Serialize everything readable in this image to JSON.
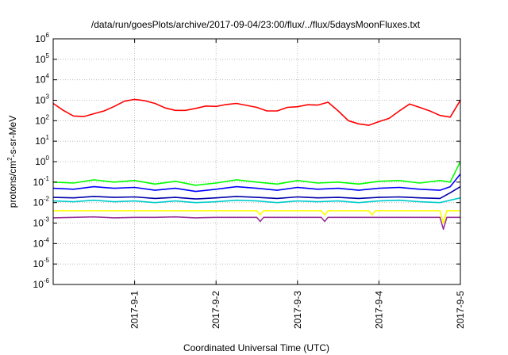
{
  "chart_data": {
    "type": "line",
    "title": "/data/run/goesPlots/archive/2017-09-04/23:00/flux/../flux/5daysMoonFluxes.txt",
    "xlabel": "Coordinated Universal Time (UTC)",
    "ylabel": {
      "prefix": "protons/cm",
      "superscript": "2",
      "suffix": "-s-sr-MeV"
    },
    "x_range": [
      "2017-08-31",
      "2017-09-05"
    ],
    "x_ticks": [
      "2017-9-1",
      "2017-9-2",
      "2017-9-3",
      "2017-9-4",
      "2017-9-5"
    ],
    "y_scale": "log",
    "y_range": [
      1e-06,
      1000000.0
    ],
    "y_ticks": [
      {
        "base": "10",
        "exponent": "-6"
      },
      {
        "base": "10",
        "exponent": "-5"
      },
      {
        "base": "10",
        "exponent": "-4"
      },
      {
        "base": "10",
        "exponent": "-3"
      },
      {
        "base": "10",
        "exponent": "-2"
      },
      {
        "base": "10",
        "exponent": "-1"
      },
      {
        "base": "10",
        "exponent": "0"
      },
      {
        "base": "10",
        "exponent": "1"
      },
      {
        "base": "10",
        "exponent": "2"
      },
      {
        "base": "10",
        "exponent": "3"
      },
      {
        "base": "10",
        "exponent": "4"
      },
      {
        "base": "10",
        "exponent": "5"
      },
      {
        "base": "10",
        "exponent": "6"
      }
    ],
    "grid": true,
    "legend": "none",
    "series": [
      {
        "color": "#ff0000",
        "x": [
          "2017-08-31T00:00",
          "2017-08-31T03:00",
          "2017-08-31T06:00",
          "2017-08-31T09:00",
          "2017-08-31T12:00",
          "2017-08-31T15:00",
          "2017-08-31T18:00",
          "2017-08-31T21:00",
          "2017-09-01T00:00",
          "2017-09-01T03:00",
          "2017-09-01T06:00",
          "2017-09-01T09:00",
          "2017-09-01T12:00",
          "2017-09-01T15:00",
          "2017-09-01T18:00",
          "2017-09-01T21:00",
          "2017-09-02T00:00",
          "2017-09-02T03:00",
          "2017-09-02T06:00",
          "2017-09-02T09:00",
          "2017-09-02T12:00",
          "2017-09-02T15:00",
          "2017-09-02T18:00",
          "2017-09-02T21:00",
          "2017-09-03T00:00",
          "2017-09-03T03:00",
          "2017-09-03T06:00",
          "2017-09-03T09:00",
          "2017-09-03T12:00",
          "2017-09-03T15:00",
          "2017-09-03T18:00",
          "2017-09-03T21:00",
          "2017-09-04T00:00",
          "2017-09-04T03:00",
          "2017-09-04T06:00",
          "2017-09-04T09:00",
          "2017-09-04T12:00",
          "2017-09-04T15:00",
          "2017-09-04T18:00",
          "2017-09-04T21:00",
          "2017-09-05T00:00"
        ],
        "y": [
          700,
          320,
          170,
          160,
          220,
          300,
          500,
          900,
          1100,
          950,
          700,
          420,
          320,
          320,
          400,
          520,
          500,
          620,
          700,
          560,
          450,
          300,
          300,
          450,
          480,
          600,
          580,
          800,
          300,
          100,
          70,
          60,
          90,
          130,
          300,
          650,
          450,
          300,
          180,
          150,
          1000
        ]
      },
      {
        "color": "#00ff00",
        "x": [
          "2017-08-31T00:00",
          "2017-08-31T06:00",
          "2017-08-31T12:00",
          "2017-08-31T18:00",
          "2017-09-01T00:00",
          "2017-09-01T06:00",
          "2017-09-01T12:00",
          "2017-09-01T18:00",
          "2017-09-02T00:00",
          "2017-09-02T06:00",
          "2017-09-02T12:00",
          "2017-09-02T18:00",
          "2017-09-03T00:00",
          "2017-09-03T06:00",
          "2017-09-03T12:00",
          "2017-09-03T18:00",
          "2017-09-04T00:00",
          "2017-09-04T06:00",
          "2017-09-04T12:00",
          "2017-09-04T18:00",
          "2017-09-04T21:00",
          "2017-09-05T00:00"
        ],
        "y": [
          0.1,
          0.09,
          0.13,
          0.1,
          0.12,
          0.08,
          0.11,
          0.07,
          0.09,
          0.13,
          0.1,
          0.08,
          0.12,
          0.09,
          0.1,
          0.08,
          0.11,
          0.12,
          0.09,
          0.12,
          0.1,
          1.0
        ]
      },
      {
        "color": "#0000ff",
        "x": [
          "2017-08-31T00:00",
          "2017-08-31T06:00",
          "2017-08-31T12:00",
          "2017-08-31T18:00",
          "2017-09-01T00:00",
          "2017-09-01T06:00",
          "2017-09-01T12:00",
          "2017-09-01T18:00",
          "2017-09-02T00:00",
          "2017-09-02T06:00",
          "2017-09-02T12:00",
          "2017-09-02T18:00",
          "2017-09-03T00:00",
          "2017-09-03T06:00",
          "2017-09-03T12:00",
          "2017-09-03T18:00",
          "2017-09-04T00:00",
          "2017-09-04T06:00",
          "2017-09-04T12:00",
          "2017-09-04T18:00",
          "2017-09-04T21:00",
          "2017-09-05T00:00"
        ],
        "y": [
          0.05,
          0.045,
          0.06,
          0.05,
          0.055,
          0.04,
          0.05,
          0.035,
          0.045,
          0.06,
          0.05,
          0.04,
          0.055,
          0.045,
          0.05,
          0.04,
          0.05,
          0.055,
          0.045,
          0.04,
          0.06,
          0.25
        ]
      },
      {
        "color": "#0000aa",
        "x": [
          "2017-08-31T00:00",
          "2017-08-31T06:00",
          "2017-08-31T12:00",
          "2017-08-31T18:00",
          "2017-09-01T00:00",
          "2017-09-01T06:00",
          "2017-09-01T12:00",
          "2017-09-01T18:00",
          "2017-09-02T00:00",
          "2017-09-02T06:00",
          "2017-09-02T12:00",
          "2017-09-02T18:00",
          "2017-09-03T00:00",
          "2017-09-03T06:00",
          "2017-09-03T12:00",
          "2017-09-03T18:00",
          "2017-09-04T00:00",
          "2017-09-04T06:00",
          "2017-09-04T12:00",
          "2017-09-04T18:00",
          "2017-09-04T21:00",
          "2017-09-05T00:00"
        ],
        "y": [
          0.018,
          0.017,
          0.02,
          0.018,
          0.019,
          0.016,
          0.018,
          0.015,
          0.017,
          0.02,
          0.018,
          0.016,
          0.019,
          0.017,
          0.018,
          0.016,
          0.018,
          0.019,
          0.017,
          0.016,
          0.03,
          0.06
        ]
      },
      {
        "color": "#00cccc",
        "x": [
          "2017-08-31T00:00",
          "2017-08-31T06:00",
          "2017-08-31T12:00",
          "2017-08-31T18:00",
          "2017-09-01T00:00",
          "2017-09-01T06:00",
          "2017-09-01T12:00",
          "2017-09-01T18:00",
          "2017-09-02T00:00",
          "2017-09-02T06:00",
          "2017-09-02T12:00",
          "2017-09-02T18:00",
          "2017-09-03T00:00",
          "2017-09-03T06:00",
          "2017-09-03T12:00",
          "2017-09-03T18:00",
          "2017-09-04T00:00",
          "2017-09-04T06:00",
          "2017-09-04T12:00",
          "2017-09-04T18:00",
          "2017-09-04T21:00",
          "2017-09-05T00:00"
        ],
        "y": [
          0.012,
          0.011,
          0.013,
          0.011,
          0.012,
          0.01,
          0.012,
          0.01,
          0.011,
          0.013,
          0.012,
          0.01,
          0.012,
          0.011,
          0.012,
          0.01,
          0.012,
          0.013,
          0.011,
          0.01,
          0.013,
          0.017
        ]
      },
      {
        "color": "#ffff00",
        "x": [
          "2017-08-31T00:00",
          "2017-08-31T12:00",
          "2017-09-01T00:00",
          "2017-09-01T12:00",
          "2017-09-02T00:00",
          "2017-09-02T12:00",
          "2017-09-02T13:00",
          "2017-09-02T14:00",
          "2017-09-03T00:00",
          "2017-09-03T07:00",
          "2017-09-03T08:00",
          "2017-09-03T09:00",
          "2017-09-03T18:00",
          "2017-09-03T21:00",
          "2017-09-03T22:00",
          "2017-09-03T23:00",
          "2017-09-04T12:00",
          "2017-09-04T18:00",
          "2017-09-04T19:00",
          "2017-09-04T20:00",
          "2017-09-05T00:00"
        ],
        "y": [
          0.004,
          0.004,
          0.004,
          0.004,
          0.004,
          0.004,
          0.0025,
          0.004,
          0.004,
          0.004,
          0.0025,
          0.004,
          0.004,
          0.004,
          0.0025,
          0.004,
          0.004,
          0.004,
          0.001,
          0.004,
          0.004
        ]
      },
      {
        "color": "#993399",
        "x": [
          "2017-08-31T00:00",
          "2017-08-31T06:00",
          "2017-08-31T12:00",
          "2017-08-31T18:00",
          "2017-09-01T00:00",
          "2017-09-01T06:00",
          "2017-09-01T12:00",
          "2017-09-01T18:00",
          "2017-09-02T00:00",
          "2017-09-02T06:00",
          "2017-09-02T12:00",
          "2017-09-02T13:00",
          "2017-09-02T14:00",
          "2017-09-03T00:00",
          "2017-09-03T07:00",
          "2017-09-03T08:00",
          "2017-09-03T09:00",
          "2017-09-03T18:00",
          "2017-09-04T00:00",
          "2017-09-04T12:00",
          "2017-09-04T18:00",
          "2017-09-04T19:00",
          "2017-09-04T20:00",
          "2017-09-05T00:00"
        ],
        "y": [
          0.0018,
          0.0019,
          0.002,
          0.0018,
          0.0019,
          0.0019,
          0.002,
          0.0018,
          0.0019,
          0.0019,
          0.0019,
          0.0012,
          0.0019,
          0.0019,
          0.0019,
          0.0012,
          0.0019,
          0.0019,
          0.0019,
          0.0019,
          0.0019,
          0.0005,
          0.0019,
          0.0019
        ]
      }
    ]
  }
}
